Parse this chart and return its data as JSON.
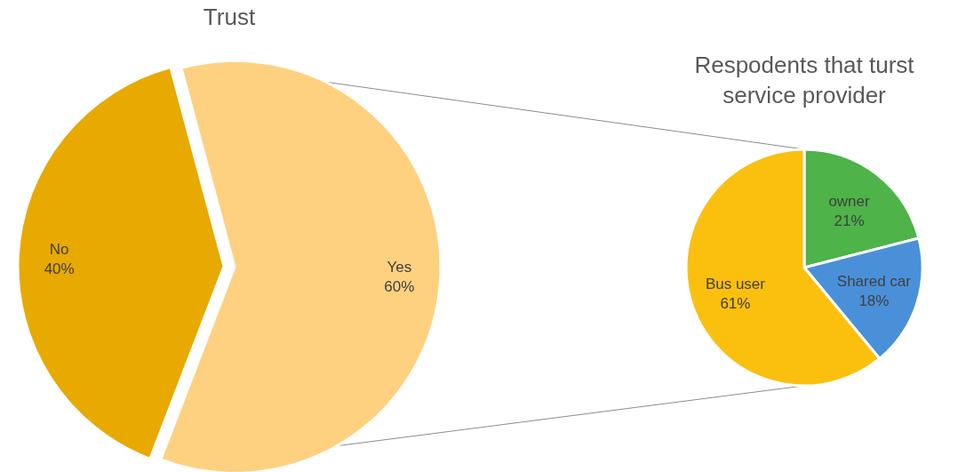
{
  "chart_data": [
    {
      "type": "pie",
      "title": "Trust",
      "categories": [
        "No",
        "Yes"
      ],
      "values": [
        40,
        60
      ],
      "value_labels": [
        "40%",
        "60%"
      ],
      "colors": [
        "#e8a900",
        "#fdd17f"
      ],
      "legend": false
    },
    {
      "type": "pie",
      "title": "Respodents that turst service provider",
      "categories": [
        "owner",
        "Shared car",
        "Bus user"
      ],
      "values": [
        21,
        18,
        61
      ],
      "value_labels": [
        "21%",
        "18%",
        "61%"
      ],
      "colors": [
        "#4eb348",
        "#4a90d9",
        "#fbbf0e"
      ],
      "legend": false
    }
  ]
}
